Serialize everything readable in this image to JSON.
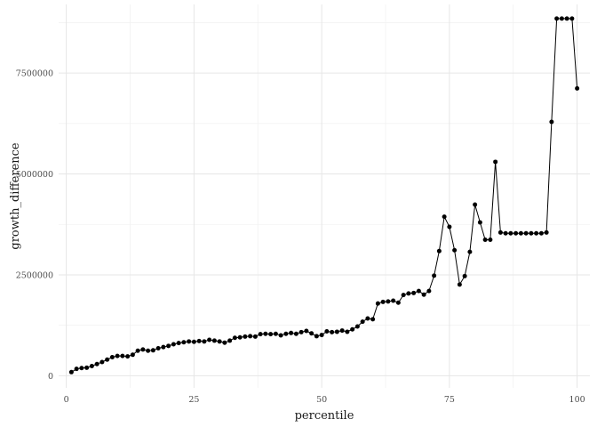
{
  "chart_data": {
    "type": "line",
    "title": "",
    "xlabel": "percentile",
    "ylabel": "growth_difference",
    "xlim": [
      -1.5,
      102.5
    ],
    "ylim": [
      -300000,
      9200000
    ],
    "x_ticks": [
      {
        "value": 0,
        "label": "0"
      },
      {
        "value": 25,
        "label": "25"
      },
      {
        "value": 50,
        "label": "50"
      },
      {
        "value": 75,
        "label": "75"
      },
      {
        "value": 100,
        "label": "100"
      }
    ],
    "y_ticks": [
      {
        "value": 0,
        "label": "0"
      },
      {
        "value": 2500000,
        "label": "2500000"
      },
      {
        "value": 5000000,
        "label": "5000000"
      },
      {
        "value": 7500000,
        "label": "7500000"
      }
    ],
    "grid": true,
    "markers": true,
    "x": [
      1,
      2,
      3,
      4,
      5,
      6,
      7,
      8,
      9,
      10,
      11,
      12,
      13,
      14,
      15,
      16,
      17,
      18,
      19,
      20,
      21,
      22,
      23,
      24,
      25,
      26,
      27,
      28,
      29,
      30,
      31,
      32,
      33,
      34,
      35,
      36,
      37,
      38,
      39,
      40,
      41,
      42,
      43,
      44,
      45,
      46,
      47,
      48,
      49,
      50,
      51,
      52,
      53,
      54,
      55,
      56,
      57,
      58,
      59,
      60,
      61,
      62,
      63,
      64,
      65,
      66,
      67,
      68,
      69,
      70,
      71,
      72,
      73,
      74,
      75,
      76,
      77,
      78,
      79,
      80,
      81,
      82,
      83,
      84,
      85,
      86,
      87,
      88,
      89,
      90,
      91,
      92,
      93,
      94,
      95,
      96,
      97,
      98,
      99,
      100
    ],
    "y": [
      90000,
      170000,
      190000,
      200000,
      240000,
      290000,
      340000,
      400000,
      460000,
      490000,
      490000,
      480000,
      520000,
      620000,
      650000,
      620000,
      630000,
      680000,
      710000,
      740000,
      780000,
      810000,
      830000,
      850000,
      840000,
      860000,
      850000,
      890000,
      870000,
      850000,
      820000,
      870000,
      940000,
      950000,
      970000,
      980000,
      970000,
      1030000,
      1040000,
      1030000,
      1040000,
      1000000,
      1040000,
      1060000,
      1040000,
      1080000,
      1110000,
      1050000,
      980000,
      1010000,
      1100000,
      1080000,
      1090000,
      1120000,
      1090000,
      1150000,
      1220000,
      1340000,
      1420000,
      1400000,
      1790000,
      1830000,
      1840000,
      1860000,
      1810000,
      2000000,
      2040000,
      2050000,
      2100000,
      2010000,
      2100000,
      2480000,
      3090000,
      3940000,
      3690000,
      3110000,
      2260000,
      2470000,
      3070000,
      4240000,
      3800000,
      3370000,
      3370000,
      5300000,
      3550000,
      3530000,
      3530000,
      3530000,
      3530000,
      3530000,
      3530000,
      3530000,
      3530000,
      3550000,
      6290000,
      8850000,
      8850000,
      8850000,
      8850000,
      7120000
    ]
  }
}
